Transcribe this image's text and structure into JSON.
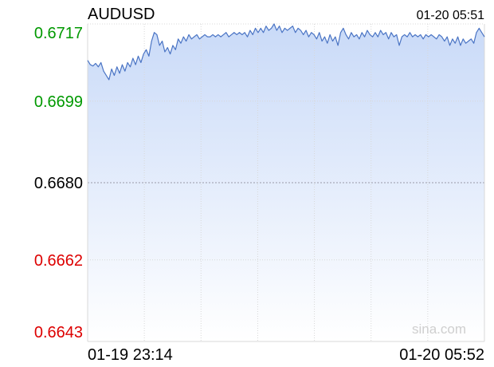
{
  "header": {
    "symbol": "AUDUSD",
    "timestamp": "01-20 05:51"
  },
  "watermark": "sina.com",
  "colors": {
    "line": "#4a74c4",
    "fill_top": "#c9daf8",
    "fill_bottom": "#ffffff",
    "grid": "#d8d8d8",
    "midline": "#9a9aa8",
    "axis_label_up": "#009900",
    "axis_label_mid": "#000000",
    "axis_label_down": "#dd0000",
    "watermark": "#cfcfcf"
  },
  "chart_data": {
    "type": "area",
    "ylim": [
      0.6643,
      0.6717
    ],
    "y_ticks": [
      {
        "value": 0.6717,
        "label": "0.6717",
        "tone": "up"
      },
      {
        "value": 0.6699,
        "label": "0.6699",
        "tone": "up"
      },
      {
        "value": 0.668,
        "label": "0.6680",
        "tone": "mid"
      },
      {
        "value": 0.6662,
        "label": "0.6662",
        "tone": "down"
      },
      {
        "value": 0.6643,
        "label": "0.6643",
        "tone": "down"
      }
    ],
    "reference_value": 0.668,
    "x_start_label": "01-19 23:14",
    "x_end_label": "01-20 05:52",
    "vertical_gridlines": 7,
    "grid": true,
    "series": [
      {
        "values": [
          0.67085,
          0.67075,
          0.67072,
          0.67078,
          0.6707,
          0.6708,
          0.6706,
          0.6705,
          0.6704,
          0.67065,
          0.6705,
          0.6707,
          0.67055,
          0.67075,
          0.6706,
          0.6708,
          0.6707,
          0.6709,
          0.67075,
          0.67095,
          0.6708,
          0.671,
          0.6711,
          0.67095,
          0.6713,
          0.6715,
          0.67145,
          0.6712,
          0.6713,
          0.67105,
          0.67115,
          0.671,
          0.6712,
          0.6711,
          0.67135,
          0.67125,
          0.6714,
          0.6713,
          0.67145,
          0.67135,
          0.6714,
          0.67145,
          0.67135,
          0.6714,
          0.67145,
          0.6714,
          0.6714,
          0.67145,
          0.6714,
          0.67145,
          0.6714,
          0.67145,
          0.6715,
          0.6714,
          0.67145,
          0.6715,
          0.67145,
          0.6715,
          0.67145,
          0.6715,
          0.6714,
          0.67155,
          0.67145,
          0.6716,
          0.6715,
          0.6716,
          0.6715,
          0.67165,
          0.67155,
          0.6716,
          0.6717,
          0.67155,
          0.67165,
          0.6715,
          0.6716,
          0.67155,
          0.6716,
          0.67165,
          0.6715,
          0.6716,
          0.67155,
          0.67145,
          0.67155,
          0.6714,
          0.6715,
          0.67145,
          0.67135,
          0.6715,
          0.6713,
          0.6714,
          0.67125,
          0.67145,
          0.6713,
          0.6714,
          0.6712,
          0.6715,
          0.6716,
          0.67145,
          0.67135,
          0.6715,
          0.6714,
          0.67145,
          0.67135,
          0.6715,
          0.6714,
          0.67155,
          0.67145,
          0.6714,
          0.6715,
          0.6714,
          0.67155,
          0.67145,
          0.6715,
          0.67135,
          0.6715,
          0.6714,
          0.67145,
          0.6712,
          0.6714,
          0.67145,
          0.6714,
          0.6715,
          0.6714,
          0.67145,
          0.6714,
          0.67145,
          0.67135,
          0.67145,
          0.6714,
          0.67145,
          0.6714,
          0.67135,
          0.67145,
          0.6714,
          0.6713,
          0.6714,
          0.6712,
          0.67135,
          0.67125,
          0.6714,
          0.6712,
          0.67135,
          0.67125,
          0.6713,
          0.67135,
          0.67125,
          0.6715,
          0.6716,
          0.6715,
          0.6714
        ]
      }
    ]
  }
}
